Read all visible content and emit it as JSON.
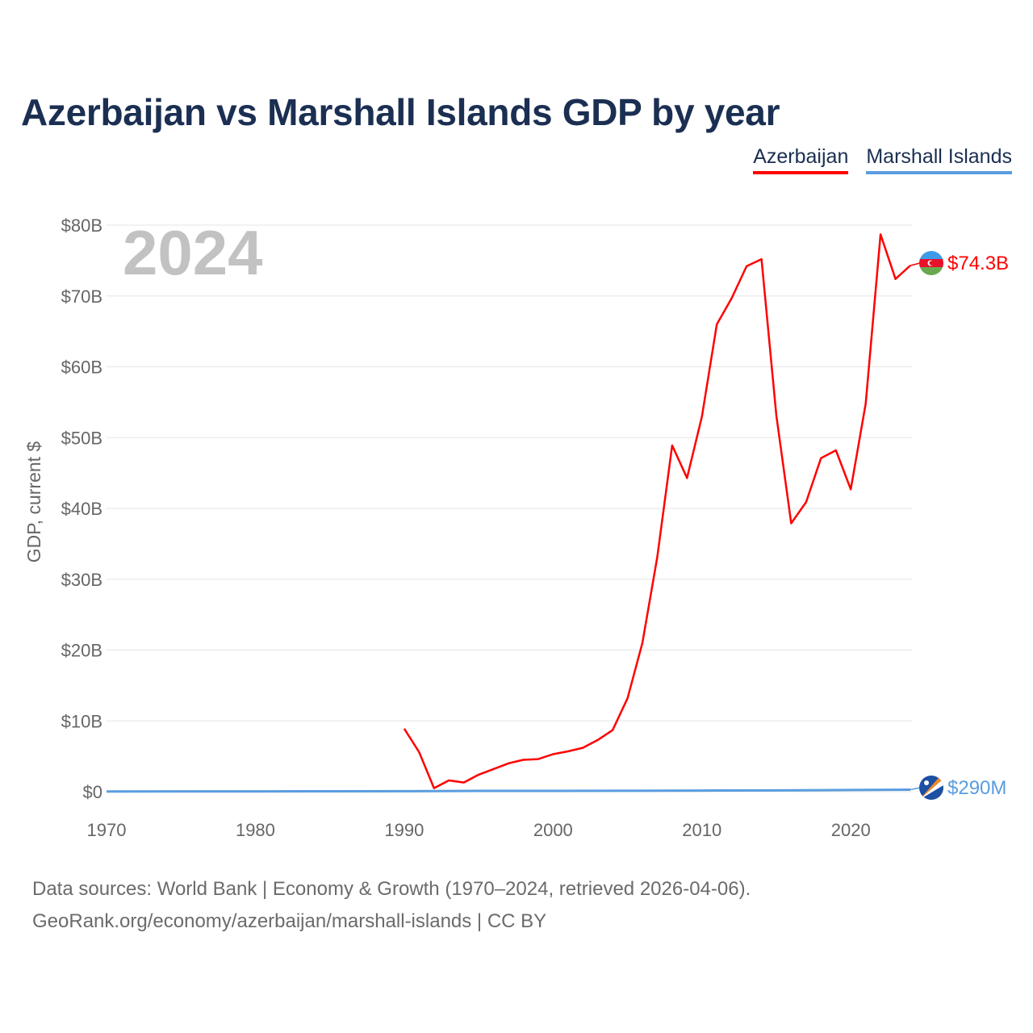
{
  "title": "Azerbaijan vs Marshall Islands GDP by year",
  "legend": [
    {
      "name": "Azerbaijan",
      "color": "#ff0000"
    },
    {
      "name": "Marshall Islands",
      "color": "#5a9de0"
    }
  ],
  "footer": {
    "line1": "Data sources: World Bank | Economy & Growth (1970–2024, retrieved 2026-04-06).",
    "line2": "GeoRank.org/economy/azerbaijan/marshall-islands | CC BY"
  },
  "chart_data": {
    "type": "line",
    "title": "Azerbaijan vs Marshall Islands GDP by year",
    "xlabel": "",
    "ylabel": "GDP, current $",
    "xlim": [
      1970,
      2024
    ],
    "ylim": [
      0,
      80
    ],
    "y_unit": "billions USD",
    "x_ticks": [
      1970,
      1980,
      1990,
      2000,
      2010,
      2020
    ],
    "y_ticks": [
      {
        "value": 0,
        "label": "$0"
      },
      {
        "value": 10,
        "label": "$10B"
      },
      {
        "value": 20,
        "label": "$20B"
      },
      {
        "value": 30,
        "label": "$30B"
      },
      {
        "value": 40,
        "label": "$40B"
      },
      {
        "value": 50,
        "label": "$50B"
      },
      {
        "value": 60,
        "label": "$60B"
      },
      {
        "value": 70,
        "label": "$70B"
      },
      {
        "value": 80,
        "label": "$80B"
      }
    ],
    "grid": true,
    "legend_position": "top-right",
    "annotation": "2024",
    "series": [
      {
        "name": "Azerbaijan",
        "color": "#ff0000",
        "end_label": "$74.3B",
        "x": [
          1990,
          1991,
          1992,
          1993,
          1994,
          1995,
          1996,
          1997,
          1998,
          1999,
          2000,
          2001,
          2002,
          2003,
          2004,
          2005,
          2006,
          2007,
          2008,
          2009,
          2010,
          2011,
          2012,
          2013,
          2014,
          2015,
          2016,
          2017,
          2018,
          2019,
          2020,
          2021,
          2022,
          2023,
          2024
        ],
        "values": [
          8.9,
          5.6,
          0.5,
          1.6,
          1.3,
          2.4,
          3.2,
          4.0,
          4.5,
          4.6,
          5.3,
          5.7,
          6.2,
          7.3,
          8.7,
          13.2,
          21.0,
          33.1,
          48.9,
          44.3,
          53.0,
          66.0,
          69.7,
          74.2,
          75.2,
          53.1,
          37.9,
          40.9,
          47.1,
          48.2,
          42.7,
          54.8,
          78.7,
          72.4,
          74.3
        ]
      },
      {
        "name": "Marshall Islands",
        "color": "#5a9de0",
        "end_label": "$290M",
        "x": [
          1970,
          1975,
          1980,
          1985,
          1990,
          1995,
          2000,
          2005,
          2010,
          2015,
          2020,
          2024
        ],
        "values": [
          0.03,
          0.04,
          0.05,
          0.06,
          0.07,
          0.11,
          0.11,
          0.13,
          0.16,
          0.18,
          0.24,
          0.29
        ]
      }
    ]
  }
}
